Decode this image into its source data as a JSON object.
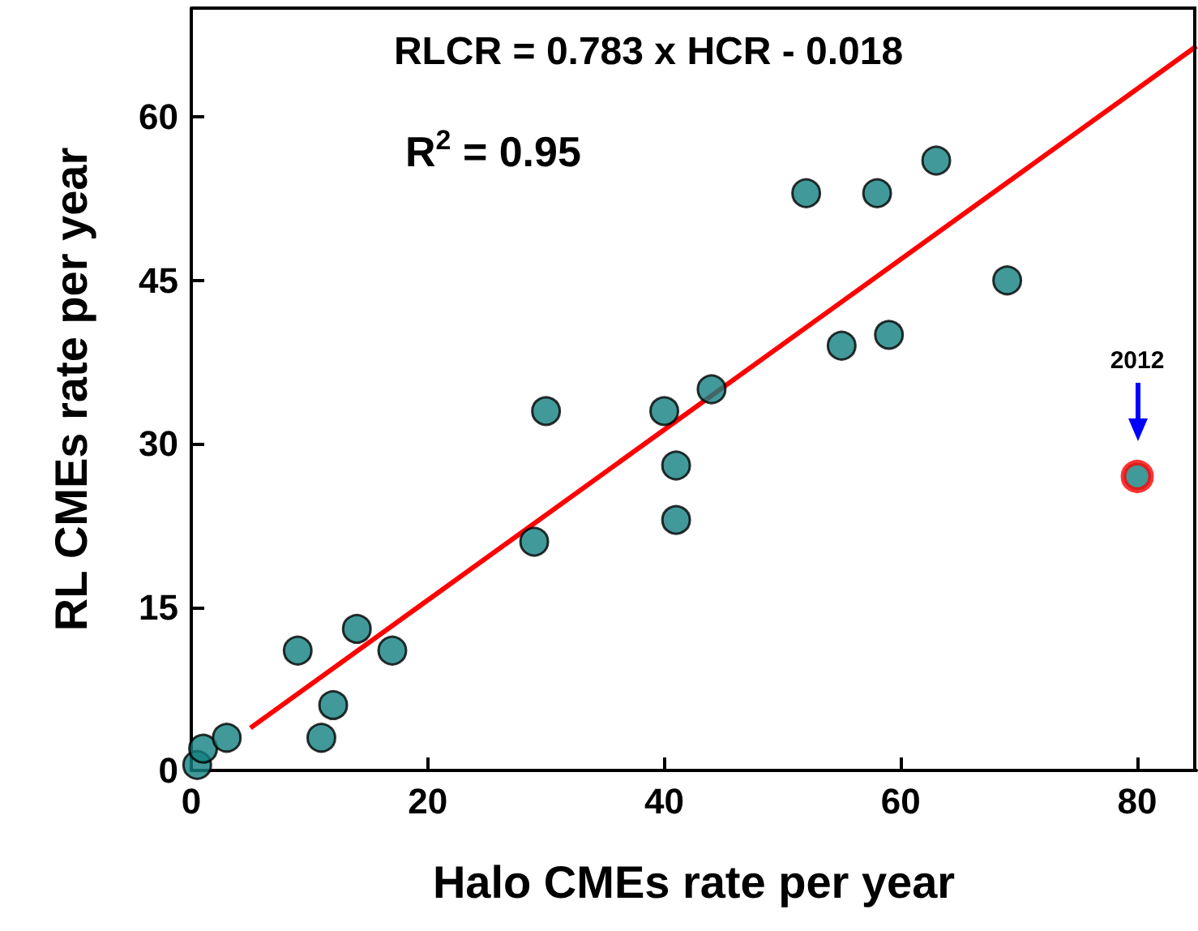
{
  "chart_data": {
    "type": "scatter",
    "xlabel": "Halo CMEs rate per year",
    "ylabel": "RL CMEs rate per year",
    "xlim": [
      0,
      85
    ],
    "xticks": [
      0,
      20,
      40,
      60,
      80
    ],
    "ylim": [
      0,
      70
    ],
    "yticks": [
      0,
      15,
      30,
      45,
      60
    ],
    "grid": false,
    "marker": "circle",
    "annotations": [
      "RLCR = 0.783 x HCR - 0.018",
      "R$^{2}$ = 0.95",
      "2012"
    ],
    "series": [
      {
        "color": "#138080",
        "x": [
          0.5,
          1,
          3,
          9,
          11,
          12,
          14,
          17,
          29,
          30,
          40,
          41,
          41,
          44,
          52,
          55,
          58,
          59,
          63,
          69
        ],
        "values": [
          0.5,
          2,
          3,
          11,
          3,
          6,
          13,
          11,
          21,
          33,
          33,
          28,
          23,
          35,
          53,
          39,
          53,
          40,
          56,
          45
        ]
      },
      {
        "color": "#ff0000",
        "x": [
          80
        ],
        "values": [
          27
        ]
      },
      {
        "type": "line",
        "marker": "none",
        "color": "#ff0000",
        "x": [
          5,
          85
        ],
        "values": [
          3.9,
          66.5
        ]
      }
    ]
  }
}
